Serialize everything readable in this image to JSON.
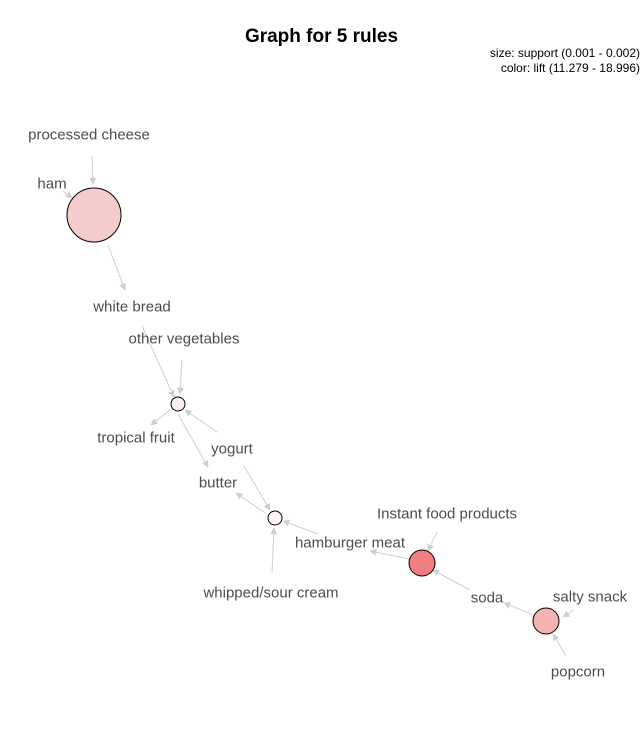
{
  "title": "Graph for 5 rules",
  "legend": {
    "size": "size: support (0.001 - 0.002)",
    "color": "color: lift (11.279 - 18.996)"
  },
  "colors": {
    "edge": "#cfcfcf",
    "label": "#4d4d4d",
    "stroke": "#000000"
  },
  "items": [
    "processed cheese",
    "ham",
    "white bread",
    "other vegetables",
    "tropical fruit",
    "yogurt",
    "butter",
    "whipped/sour cream",
    "hamburger meat",
    "Instant food products",
    "soda",
    "salty snack",
    "popcorn"
  ],
  "rules": [
    {
      "lhs": [
        "processed cheese",
        "ham"
      ],
      "rhs": "white bread",
      "fill": "#f4cccc",
      "support_level": 1.0
    },
    {
      "lhs": [
        "white bread",
        "other vegetables",
        "yogurt"
      ],
      "rhs": "tropical fruit",
      "fill": "#fbeeee",
      "support_level": 0.0
    },
    {
      "lhs": [
        "yogurt",
        "hamburger meat",
        "whipped/sour cream"
      ],
      "rhs": "butter",
      "fill": "#fcf4f4",
      "support_level": 0.0
    },
    {
      "lhs": [
        "Instant food products",
        "soda"
      ],
      "rhs": "hamburger meat",
      "fill": "#f08080",
      "support_level": 0.3
    },
    {
      "lhs": [
        "popcorn",
        "salty snack"
      ],
      "rhs": "soda",
      "fill": "#f6b1b1",
      "support_level": 0.3
    }
  ]
}
